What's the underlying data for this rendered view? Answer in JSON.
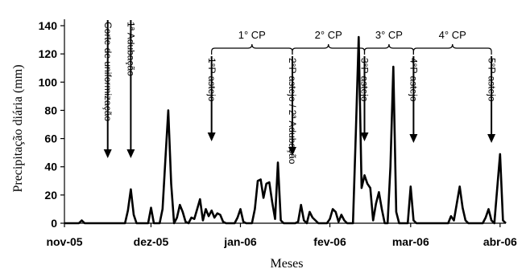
{
  "chart_data": {
    "type": "line",
    "title": "",
    "xlabel": "Meses",
    "ylabel": "Precipitação diária (mm)",
    "ylim": [
      0,
      140
    ],
    "yticks": [
      0,
      20,
      40,
      60,
      80,
      100,
      120,
      140
    ],
    "xlim": [
      "2005-11-01",
      "2006-04-03"
    ],
    "xticks": [
      {
        "date": "2005-11-01",
        "label": "nov-05"
      },
      {
        "date": "2005-12-01",
        "label": "dez-05"
      },
      {
        "date": "2006-01-01",
        "label": "jan-06"
      },
      {
        "date": "2006-02-01",
        "label": "fev-06"
      },
      {
        "date": "2006-03-01",
        "label": "mar-06"
      },
      {
        "date": "2006-04-01",
        "label": "abr-06"
      }
    ],
    "grid": false,
    "series": [
      {
        "color": "#000000",
        "points": [
          [
            "2005-11-01",
            0
          ],
          [
            "2005-11-06",
            0
          ],
          [
            "2005-11-07",
            2
          ],
          [
            "2005-11-08",
            0
          ],
          [
            "2005-11-22",
            0
          ],
          [
            "2005-11-23",
            9
          ],
          [
            "2005-11-24",
            24
          ],
          [
            "2005-11-25",
            6
          ],
          [
            "2005-11-26",
            0
          ],
          [
            "2005-11-30",
            0
          ],
          [
            "2005-12-01",
            11
          ],
          [
            "2005-12-02",
            0
          ],
          [
            "2005-12-04",
            0
          ],
          [
            "2005-12-05",
            10
          ],
          [
            "2005-12-06",
            46
          ],
          [
            "2005-12-07",
            80
          ],
          [
            "2005-12-08",
            28
          ],
          [
            "2005-12-09",
            0
          ],
          [
            "2005-12-10",
            4
          ],
          [
            "2005-12-11",
            13
          ],
          [
            "2005-12-12",
            8
          ],
          [
            "2005-12-13",
            1
          ],
          [
            "2005-12-14",
            0
          ],
          [
            "2005-12-15",
            4
          ],
          [
            "2005-12-16",
            3
          ],
          [
            "2005-12-17",
            10
          ],
          [
            "2005-12-18",
            17
          ],
          [
            "2005-12-19",
            2
          ],
          [
            "2005-12-20",
            10
          ],
          [
            "2005-12-21",
            5
          ],
          [
            "2005-12-22",
            9
          ],
          [
            "2005-12-23",
            4
          ],
          [
            "2005-12-24",
            7
          ],
          [
            "2005-12-25",
            6
          ],
          [
            "2005-12-26",
            1
          ],
          [
            "2005-12-27",
            0
          ],
          [
            "2005-12-30",
            0
          ],
          [
            "2005-12-31",
            4
          ],
          [
            "2006-01-01",
            10
          ],
          [
            "2006-01-02",
            1
          ],
          [
            "2006-01-03",
            0
          ],
          [
            "2006-01-05",
            0
          ],
          [
            "2006-01-06",
            10
          ],
          [
            "2006-01-07",
            30
          ],
          [
            "2006-01-08",
            31
          ],
          [
            "2006-01-09",
            18
          ],
          [
            "2006-01-10",
            28
          ],
          [
            "2006-01-11",
            29
          ],
          [
            "2006-01-12",
            15
          ],
          [
            "2006-01-13",
            3
          ],
          [
            "2006-01-14",
            43
          ],
          [
            "2006-01-15",
            2
          ],
          [
            "2006-01-16",
            0
          ],
          [
            "2006-01-20",
            0
          ],
          [
            "2006-01-21",
            1
          ],
          [
            "2006-01-22",
            13
          ],
          [
            "2006-01-23",
            2
          ],
          [
            "2006-01-24",
            0
          ],
          [
            "2006-01-25",
            8
          ],
          [
            "2006-01-26",
            4
          ],
          [
            "2006-01-27",
            2
          ],
          [
            "2006-01-28",
            0
          ],
          [
            "2006-01-31",
            0
          ],
          [
            "2006-02-01",
            3
          ],
          [
            "2006-02-02",
            10
          ],
          [
            "2006-02-03",
            8
          ],
          [
            "2006-02-04",
            1
          ],
          [
            "2006-02-05",
            6
          ],
          [
            "2006-02-06",
            2
          ],
          [
            "2006-02-07",
            0
          ],
          [
            "2006-02-09",
            0
          ],
          [
            "2006-02-10",
            65
          ],
          [
            "2006-02-11",
            132
          ],
          [
            "2006-02-12",
            25
          ],
          [
            "2006-02-13",
            34
          ],
          [
            "2006-02-14",
            28
          ],
          [
            "2006-02-15",
            25
          ],
          [
            "2006-02-16",
            2
          ],
          [
            "2006-02-17",
            14
          ],
          [
            "2006-02-18",
            22
          ],
          [
            "2006-02-19",
            10
          ],
          [
            "2006-02-20",
            0
          ],
          [
            "2006-02-21",
            0
          ],
          [
            "2006-02-22",
            40
          ],
          [
            "2006-02-23",
            111
          ],
          [
            "2006-02-24",
            8
          ],
          [
            "2006-02-25",
            0
          ],
          [
            "2006-02-28",
            0
          ],
          [
            "2006-03-01",
            26
          ],
          [
            "2006-03-02",
            2
          ],
          [
            "2006-03-03",
            0
          ],
          [
            "2006-03-14",
            0
          ],
          [
            "2006-03-15",
            5
          ],
          [
            "2006-03-16",
            2
          ],
          [
            "2006-03-17",
            14
          ],
          [
            "2006-03-18",
            26
          ],
          [
            "2006-03-19",
            11
          ],
          [
            "2006-03-20",
            2
          ],
          [
            "2006-03-21",
            0
          ],
          [
            "2006-03-26",
            0
          ],
          [
            "2006-03-27",
            4
          ],
          [
            "2006-03-28",
            10
          ],
          [
            "2006-03-29",
            2
          ],
          [
            "2006-03-30",
            0
          ],
          [
            "2006-03-31",
            25
          ],
          [
            "2006-04-01",
            49
          ],
          [
            "2006-04-02",
            2
          ],
          [
            "2006-04-03",
            0
          ]
        ]
      }
    ],
    "event_arrows": [
      {
        "date": "2005-11-16",
        "label": "Corte de uniformização"
      },
      {
        "date": "2005-11-24",
        "label": "1ª Adubação"
      },
      {
        "date": "2005-12-22",
        "label": "1°P astejo"
      },
      {
        "date": "2006-01-19",
        "label": "2°P astejo / 2ª Adubação"
      },
      {
        "date": "2006-02-13",
        "label": "3°P astejo"
      },
      {
        "date": "2006-03-02",
        "label": "4°P astejo"
      },
      {
        "date": "2006-03-29",
        "label": "5°P astejo"
      }
    ],
    "cycle_brackets": [
      {
        "from": "2005-12-22",
        "to": "2006-01-19",
        "label": "1° CP"
      },
      {
        "from": "2006-01-19",
        "to": "2006-02-13",
        "label": "2° CP"
      },
      {
        "from": "2006-02-13",
        "to": "2006-03-02",
        "label": "3° CP"
      },
      {
        "from": "2006-03-02",
        "to": "2006-03-29",
        "label": "4° CP"
      }
    ]
  }
}
